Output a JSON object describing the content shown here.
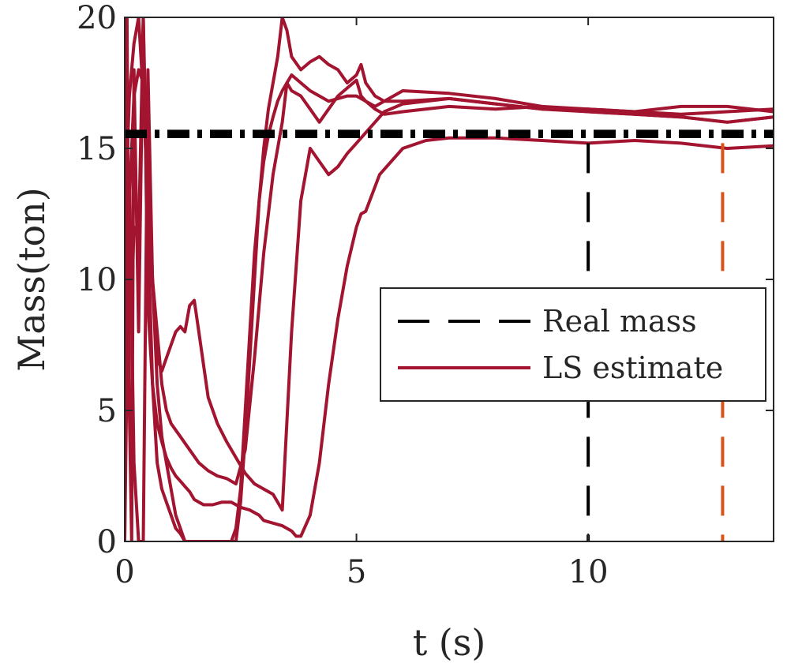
{
  "chart_data": {
    "type": "line",
    "xlabel": "t (s)",
    "ylabel": "Mass(ton)",
    "xlim": [
      0,
      14
    ],
    "ylim": [
      0,
      20
    ],
    "xticks": [
      0,
      5,
      10
    ],
    "yticks": [
      0,
      5,
      10,
      15,
      20
    ],
    "grid": false,
    "legend_position": "center-right",
    "colors": {
      "real_mass": "#000000",
      "ls_estimate": "#a2142f",
      "marker_line": "#d95319",
      "axis": "#262626"
    },
    "legend": [
      {
        "label": "Real mass",
        "style": "dashed",
        "color": "#000000"
      },
      {
        "label": "LS estimate",
        "style": "solid",
        "color": "#a2142f"
      }
    ],
    "reference_lines": [
      {
        "name": "Real mass",
        "orientation": "horizontal",
        "y": 15.45,
        "style": "dashdot",
        "color": "#000000"
      },
      {
        "name": "Real mass",
        "orientation": "horizontal",
        "y": 15.55,
        "style": "dashdot",
        "color": "#000000"
      },
      {
        "name": "Real mass",
        "orientation": "horizontal",
        "y": 15.65,
        "style": "dashdot",
        "color": "#000000"
      },
      {
        "orientation": "vertical",
        "x": 10.0,
        "y_range": [
          0,
          15.2
        ],
        "style": "dashed",
        "color": "#000000"
      },
      {
        "orientation": "vertical",
        "x": 12.9,
        "y_range": [
          0,
          15.2
        ],
        "style": "dashed",
        "color": "#d95319"
      }
    ],
    "series": [
      {
        "x": [
          0,
          0.05,
          0.1,
          0.15,
          0.2,
          0.3,
          0.4,
          0.45,
          0.5,
          0.6,
          0.7,
          0.8,
          0.9,
          1.0,
          1.1,
          1.2,
          1.3,
          1.4,
          1.5,
          1.7,
          1.9,
          2.1,
          2.3,
          2.5,
          2.7,
          2.9,
          3.0,
          3.2,
          3.4,
          3.6,
          3.7,
          3.8,
          4.0,
          4.2,
          4.4,
          4.6,
          4.8,
          5.0,
          5.1,
          5.2,
          5.5,
          6.0,
          6.5,
          7.0,
          8.0,
          9.0,
          10.0,
          11.0,
          12.0,
          13.0,
          14.0
        ],
        "y": [
          15.0,
          11.0,
          14.0,
          9.0,
          12.0,
          11.5,
          20.0,
          15.0,
          9.0,
          6.0,
          4.5,
          3.8,
          3.2,
          2.8,
          2.5,
          2.3,
          2.1,
          1.9,
          1.6,
          1.4,
          1.4,
          1.5,
          1.5,
          1.3,
          1.2,
          1.0,
          0.8,
          0.7,
          0.6,
          0.4,
          0.2,
          0.2,
          1.0,
          3.0,
          6.0,
          8.5,
          10.5,
          12.0,
          12.5,
          12.6,
          14.0,
          15.0,
          15.3,
          15.4,
          15.4,
          15.3,
          15.2,
          15.3,
          15.2,
          15.0,
          15.1
        ]
      },
      {
        "x": [
          0,
          0.1,
          0.2,
          0.3,
          0.4,
          0.5,
          0.6,
          0.7,
          0.8,
          0.9,
          1.0,
          1.1,
          1.2,
          1.3,
          1.4,
          1.5,
          1.6,
          1.8,
          2.0,
          2.2,
          2.4,
          2.6,
          2.8,
          3.0,
          3.2,
          3.4,
          3.6,
          3.8,
          4.0,
          4.2,
          4.4,
          4.6,
          4.8,
          5.0,
          5.2,
          5.4,
          5.6,
          6.0,
          7.0,
          8.0,
          9.0,
          10.0,
          11.0,
          12.0,
          13.0,
          14.0
        ],
        "y": [
          8.0,
          13.0,
          17.0,
          18.0,
          17.5,
          15.0,
          10.0,
          7.0,
          6.5,
          7.0,
          7.5,
          8.0,
          8.2,
          8.0,
          9.0,
          9.2,
          8.0,
          5.5,
          4.5,
          3.8,
          3.2,
          2.6,
          2.2,
          2.0,
          1.8,
          1.2,
          8.0,
          13.0,
          15.0,
          14.5,
          14.0,
          14.3,
          14.8,
          15.2,
          15.6,
          16.0,
          16.4,
          16.7,
          16.9,
          16.7,
          16.5,
          16.4,
          16.3,
          16.2,
          16.0,
          16.2
        ]
      },
      {
        "x": [
          0,
          0.1,
          0.2,
          0.3,
          0.4,
          0.5,
          0.6,
          0.7,
          0.8,
          0.9,
          1.0,
          1.2,
          1.4,
          1.6,
          1.8,
          2.0,
          2.2,
          2.4,
          2.6,
          2.8,
          3.0,
          3.2,
          3.4,
          3.5,
          3.6,
          3.8,
          4.0,
          4.2,
          4.4,
          4.6,
          4.8,
          5.0,
          5.1,
          5.2,
          5.4,
          5.6,
          6.0,
          7.0,
          8.0,
          9.0,
          10.0,
          11.0,
          12.0,
          13.0,
          14.0
        ],
        "y": [
          12.0,
          17.0,
          19.0,
          20.0,
          17.0,
          13.0,
          10.0,
          8.0,
          6.0,
          5.0,
          4.5,
          4.0,
          3.5,
          3.0,
          2.7,
          2.5,
          2.4,
          2.2,
          3.5,
          7.0,
          11.0,
          14.0,
          16.0,
          17.5,
          17.2,
          17.0,
          16.5,
          16.0,
          16.5,
          17.0,
          17.3,
          17.6,
          17.0,
          16.8,
          16.6,
          16.8,
          17.2,
          17.1,
          16.9,
          16.6,
          16.5,
          16.4,
          16.3,
          16.4,
          16.5
        ]
      },
      {
        "x": [
          0,
          0.05,
          0.1,
          0.15,
          0.2,
          0.3,
          0.4,
          0.5,
          0.6,
          0.7,
          0.8,
          0.9,
          1.0,
          1.1,
          1.2,
          1.3,
          2.4,
          2.5,
          2.6,
          2.7,
          2.8,
          2.9,
          3.0,
          3.1,
          3.2,
          3.3,
          3.4,
          3.5,
          3.6,
          3.8,
          4.0,
          4.2,
          4.4,
          4.6,
          4.8,
          5.0,
          5.1,
          5.2,
          5.4,
          5.6,
          6.0,
          7.0,
          8.0,
          9.0,
          10.0,
          11.0,
          12.0,
          13.0,
          14.0
        ],
        "y": [
          0,
          20.0,
          5.0,
          0,
          18.0,
          8.0,
          20.0,
          12.0,
          6.0,
          3.0,
          2.0,
          1.5,
          1.0,
          0.5,
          0.3,
          0,
          0,
          1.5,
          4.0,
          7.0,
          10.0,
          13.0,
          15.0,
          16.5,
          17.5,
          18.5,
          20.0,
          19.5,
          18.5,
          18.0,
          18.3,
          18.5,
          18.2,
          18.0,
          17.5,
          17.8,
          18.2,
          17.5,
          17.0,
          16.8,
          16.8,
          16.9,
          16.7,
          16.5,
          16.5,
          16.4,
          16.6,
          16.6,
          16.4
        ]
      },
      {
        "x": [
          0,
          0.1,
          0.2,
          0.3,
          0.4,
          0.5,
          0.6,
          0.7,
          0.8,
          0.9,
          1.0,
          1.1,
          1.2,
          1.3,
          2.3,
          2.4,
          2.5,
          2.6,
          2.7,
          2.8,
          2.9,
          3.0,
          3.1,
          3.2,
          3.3,
          3.4,
          3.5,
          3.6,
          3.8,
          4.0,
          4.2,
          4.4,
          4.6,
          4.8,
          5.0,
          5.2,
          5.4,
          5.6,
          6.0,
          7.0,
          8.0,
          9.0,
          10.0,
          11.0,
          12.0,
          13.0,
          14.0
        ],
        "y": [
          0,
          14.0,
          3.0,
          0,
          0,
          18.0,
          10.0,
          6.0,
          4.0,
          3.0,
          2.0,
          1.0,
          0.5,
          0,
          0,
          0.5,
          2.0,
          5.0,
          8.0,
          11.0,
          13.0,
          14.5,
          15.5,
          16.2,
          16.8,
          17.2,
          17.5,
          17.8,
          17.5,
          17.2,
          17.0,
          16.8,
          16.9,
          17.0,
          17.0,
          16.8,
          16.5,
          16.3,
          16.4,
          16.6,
          16.5,
          16.6,
          16.4,
          16.3,
          16.2,
          16.0,
          16.2
        ]
      }
    ]
  }
}
